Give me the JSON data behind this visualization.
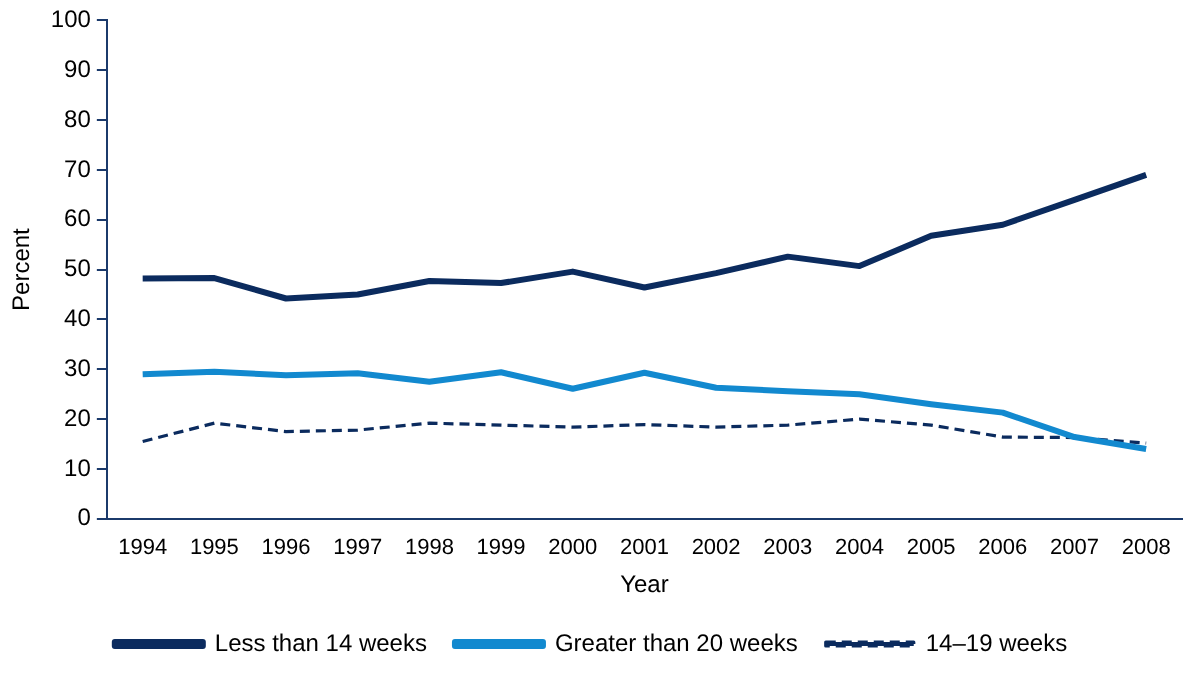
{
  "chart_data": {
    "type": "line",
    "xlabel": "Year",
    "ylabel": "Percent",
    "categories": [
      "1994",
      "1995",
      "1996",
      "1997",
      "1998",
      "1999",
      "2000",
      "2001",
      "2002",
      "2003",
      "2004",
      "2005",
      "2006",
      "2007",
      "2008"
    ],
    "series": [
      {
        "name": "Less than 14 weeks",
        "color": "#0b2b5e",
        "line_style": "solid",
        "values": [
          48.2,
          48.3,
          44.2,
          45,
          47.7,
          47.3,
          49.6,
          46.4,
          49.3,
          52.6,
          50.7,
          56.8,
          59,
          64,
          69
        ]
      },
      {
        "name": "Greater than 20 weeks",
        "color": "#1289cf",
        "line_style": "solid",
        "values": [
          29,
          29.5,
          28.8,
          29.2,
          27.5,
          29.4,
          26.1,
          29.3,
          26.3,
          25.6,
          25,
          23,
          21.3,
          16.4,
          14
        ]
      },
      {
        "name": "14–19 weeks",
        "color": "#0b2b5e",
        "line_style": "dashed",
        "values": [
          15.5,
          19.2,
          17.5,
          17.8,
          19.2,
          18.8,
          18.4,
          18.9,
          18.4,
          18.8,
          20,
          18.8,
          16.4,
          16.3,
          15.2
        ]
      }
    ],
    "ylim": [
      0,
      100
    ],
    "yticks": [
      0,
      10,
      20,
      30,
      40,
      50,
      60,
      70,
      80,
      90,
      100
    ],
    "grid": false,
    "legend": "bottom",
    "marker": "none"
  }
}
